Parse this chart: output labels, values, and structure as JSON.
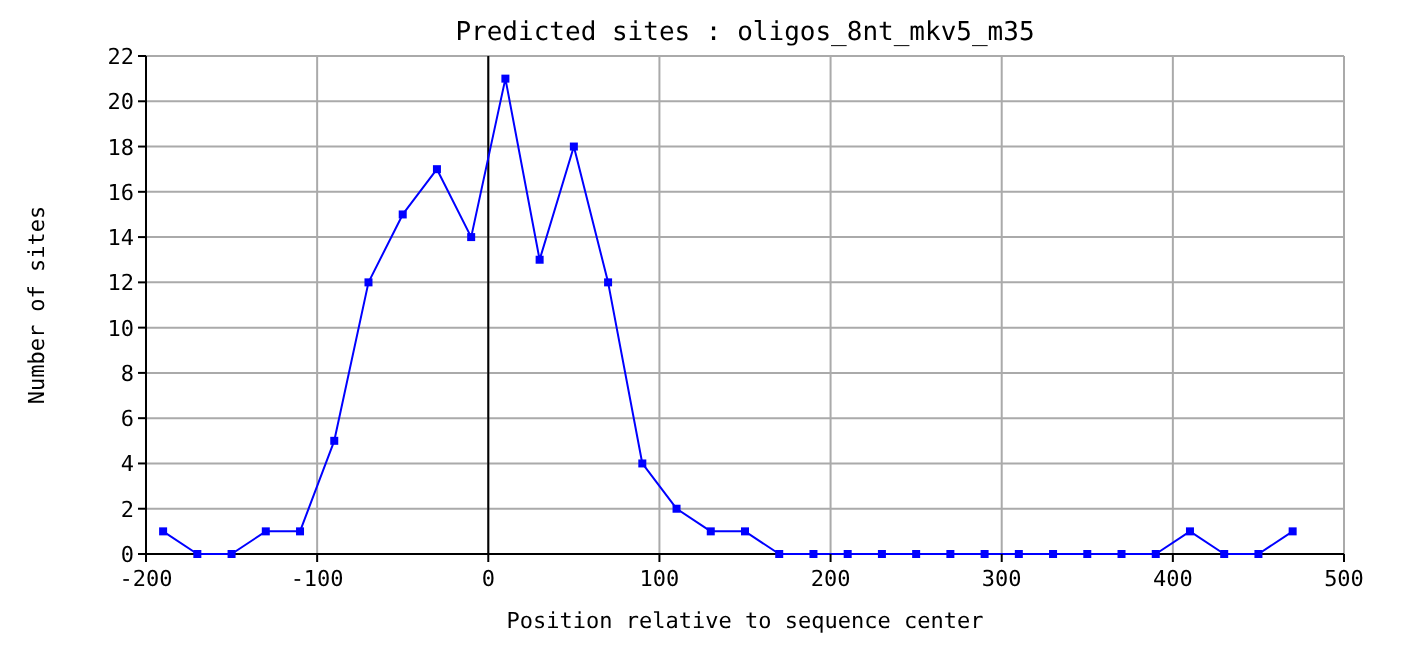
{
  "chart_data": {
    "type": "line",
    "title": "Predicted sites : oligos_8nt_mkv5_m35",
    "xlabel": "Position relative to sequence center",
    "ylabel": "Number of sites",
    "x": [
      -190,
      -170,
      -150,
      -130,
      -110,
      -90,
      -70,
      -50,
      -30,
      -10,
      10,
      30,
      50,
      70,
      90,
      110,
      130,
      150,
      170,
      190,
      210,
      230,
      250,
      270,
      290,
      310,
      330,
      350,
      370,
      390,
      410,
      430,
      450,
      470
    ],
    "series": [
      {
        "color": "#0000ff",
        "values": [
          1,
          0,
          0,
          1,
          1,
          5,
          12,
          15,
          17,
          14,
          21,
          13,
          18,
          12,
          4,
          2,
          1,
          1,
          0,
          0,
          0,
          0,
          0,
          0,
          0,
          0,
          0,
          0,
          0,
          0,
          1,
          0,
          0,
          1
        ]
      }
    ],
    "xlim": [
      -200,
      500
    ],
    "xticks": [
      -200,
      -100,
      0,
      100,
      200,
      300,
      400,
      500
    ],
    "ylim": [
      0,
      22
    ],
    "yticks": [
      0,
      2,
      4,
      6,
      8,
      10,
      12,
      14,
      16,
      18,
      20,
      22
    ],
    "ref_lines": [
      {
        "axis": "x",
        "value": 0,
        "color": "#000000"
      }
    ],
    "grid": true,
    "marker": "square",
    "line_style": "solid"
  }
}
